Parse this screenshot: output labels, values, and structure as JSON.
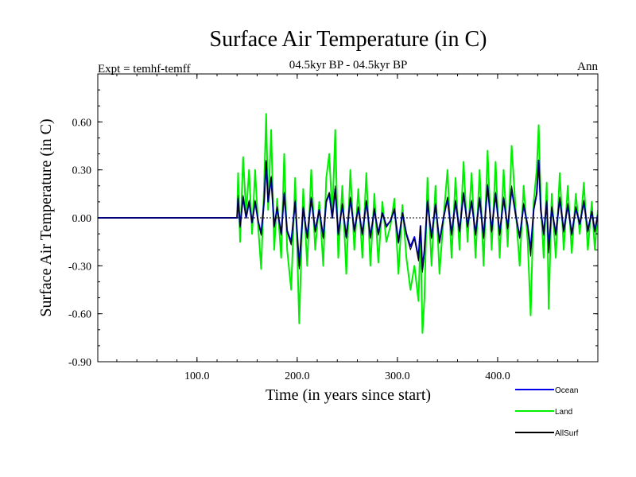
{
  "chart_data": {
    "type": "line",
    "title": "Surface Air Temperature (in C)",
    "subtitle": "04.5kyr BP - 04.5kyr BP",
    "left_label": "Expt = temhf-temff",
    "right_label": "Ann",
    "xlabel": "Time (in years since start)",
    "ylabel": "Surface Air Temperature (in C)",
    "xlim": [
      1,
      500
    ],
    "ylim": [
      -0.9,
      0.9
    ],
    "xticks": [
      100,
      200,
      300,
      400
    ],
    "xtick_labels": [
      "100.0",
      "200.0",
      "300.0",
      "400.0"
    ],
    "yticks": [
      -0.9,
      -0.6,
      -0.3,
      0.0,
      0.3,
      0.6
    ],
    "ytick_labels": [
      "-0.90",
      "-0.60",
      "-0.30",
      "0.00",
      "0.30",
      "0.60"
    ],
    "zero_line": true,
    "legend_position": "bottom-right",
    "series": [
      {
        "name": "Land",
        "color": "#00ee00",
        "x": [
          1,
          140,
          141,
          143,
          146,
          149,
          152,
          155,
          158,
          161,
          164,
          167,
          169,
          171,
          174,
          177,
          180,
          184,
          187,
          190,
          194,
          198,
          202,
          206,
          210,
          214,
          218,
          222,
          226,
          229,
          232,
          235,
          238,
          241,
          245,
          249,
          253,
          257,
          261,
          265,
          269,
          273,
          277,
          281,
          285,
          289,
          293,
          297,
          301,
          305,
          309,
          313,
          317,
          321,
          323,
          325,
          327,
          330,
          334,
          338,
          342,
          346,
          350,
          354,
          358,
          362,
          366,
          370,
          374,
          378,
          382,
          386,
          390,
          394,
          398,
          402,
          406,
          410,
          414,
          418,
          422,
          426,
          430,
          433,
          436,
          439,
          441,
          443,
          446,
          449,
          451,
          454,
          458,
          462,
          466,
          470,
          474,
          478,
          482,
          486,
          490,
          494,
          497,
          500
        ],
        "values": [
          0.0,
          0.0,
          0.28,
          -0.15,
          0.38,
          0.02,
          0.3,
          -0.1,
          0.3,
          -0.05,
          -0.32,
          0.2,
          0.65,
          0.05,
          0.55,
          -0.2,
          0.12,
          -0.25,
          0.4,
          -0.2,
          -0.45,
          0.25,
          -0.66,
          0.18,
          -0.3,
          0.3,
          -0.2,
          0.1,
          -0.3,
          0.25,
          0.4,
          0.0,
          0.55,
          -0.25,
          0.2,
          -0.35,
          0.3,
          -0.2,
          0.18,
          -0.25,
          0.28,
          -0.3,
          0.15,
          -0.28,
          0.1,
          -0.15,
          -0.05,
          0.12,
          -0.35,
          0.08,
          -0.25,
          -0.45,
          -0.3,
          -0.52,
          -0.1,
          -0.72,
          -0.5,
          0.25,
          -0.3,
          0.2,
          -0.35,
          0.0,
          0.3,
          -0.25,
          0.25,
          -0.2,
          0.35,
          -0.15,
          0.28,
          -0.25,
          0.3,
          -0.3,
          0.42,
          -0.2,
          0.35,
          -0.25,
          0.3,
          -0.18,
          0.45,
          0.05,
          -0.3,
          0.2,
          -0.15,
          -0.61,
          0.1,
          0.3,
          0.58,
          0.1,
          -0.25,
          0.22,
          -0.57,
          0.15,
          -0.25,
          0.28,
          -0.2,
          0.2,
          -0.22,
          0.15,
          -0.1,
          0.22,
          -0.2,
          0.1,
          -0.2,
          0.05
        ]
      },
      {
        "name": "Ocean",
        "color": "#0000ee",
        "x": [
          1,
          140,
          141,
          143,
          146,
          149,
          152,
          155,
          158,
          161,
          164,
          167,
          169,
          171,
          174,
          177,
          180,
          184,
          187,
          190,
          194,
          198,
          202,
          206,
          210,
          214,
          218,
          222,
          226,
          229,
          232,
          235,
          238,
          241,
          245,
          249,
          253,
          257,
          261,
          265,
          269,
          273,
          277,
          281,
          285,
          289,
          293,
          297,
          301,
          305,
          309,
          313,
          317,
          321,
          323,
          325,
          327,
          330,
          334,
          338,
          342,
          346,
          350,
          354,
          358,
          362,
          366,
          370,
          374,
          378,
          382,
          386,
          390,
          394,
          398,
          402,
          406,
          410,
          414,
          418,
          422,
          426,
          430,
          433,
          436,
          439,
          441,
          443,
          446,
          449,
          451,
          454,
          458,
          462,
          466,
          470,
          474,
          478,
          482,
          486,
          490,
          494,
          497,
          500
        ],
        "values": [
          0.0,
          0.0,
          0.12,
          -0.05,
          0.13,
          0.0,
          0.1,
          -0.03,
          0.1,
          -0.02,
          -0.1,
          0.1,
          0.35,
          0.1,
          0.25,
          -0.05,
          0.06,
          -0.1,
          0.15,
          -0.08,
          -0.15,
          0.1,
          -0.3,
          0.06,
          -0.12,
          0.12,
          -0.08,
          0.05,
          -0.12,
          0.1,
          0.15,
          0.0,
          0.18,
          -0.1,
          0.08,
          -0.12,
          0.12,
          -0.08,
          0.06,
          -0.1,
          0.1,
          -0.12,
          0.05,
          -0.1,
          0.03,
          -0.05,
          -0.02,
          0.05,
          -0.15,
          0.03,
          -0.1,
          -0.18,
          -0.12,
          -0.25,
          -0.05,
          -0.32,
          -0.2,
          0.1,
          -0.12,
          0.08,
          -0.15,
          0.0,
          0.12,
          -0.1,
          0.1,
          -0.08,
          0.15,
          -0.05,
          0.1,
          -0.1,
          0.12,
          -0.12,
          0.2,
          -0.08,
          0.15,
          -0.1,
          0.12,
          -0.06,
          0.18,
          0.02,
          -0.12,
          0.08,
          -0.05,
          -0.2,
          0.05,
          0.15,
          0.36,
          0.05,
          -0.1,
          0.1,
          -0.2,
          0.06,
          -0.1,
          0.12,
          -0.08,
          0.08,
          -0.1,
          0.06,
          -0.04,
          0.1,
          -0.08,
          0.04,
          -0.08,
          0.02
        ]
      },
      {
        "name": "AllSurf",
        "color": "#000000",
        "x": [
          1,
          140,
          141,
          143,
          146,
          149,
          152,
          155,
          158,
          161,
          164,
          167,
          169,
          171,
          174,
          177,
          180,
          184,
          187,
          190,
          194,
          198,
          202,
          206,
          210,
          214,
          218,
          222,
          226,
          229,
          232,
          235,
          238,
          241,
          245,
          249,
          253,
          257,
          261,
          265,
          269,
          273,
          277,
          281,
          285,
          289,
          293,
          297,
          301,
          305,
          309,
          313,
          317,
          321,
          323,
          325,
          327,
          330,
          334,
          338,
          342,
          346,
          350,
          354,
          358,
          362,
          366,
          370,
          374,
          378,
          382,
          386,
          390,
          394,
          398,
          402,
          406,
          410,
          414,
          418,
          422,
          426,
          430,
          433,
          436,
          439,
          441,
          443,
          446,
          449,
          451,
          454,
          458,
          462,
          466,
          470,
          474,
          478,
          482,
          486,
          490,
          494,
          497,
          500
        ],
        "values": [
          0.0,
          0.0,
          0.14,
          -0.06,
          0.14,
          0.0,
          0.11,
          -0.03,
          0.11,
          -0.02,
          -0.11,
          0.11,
          0.36,
          0.1,
          0.26,
          -0.06,
          0.07,
          -0.11,
          0.16,
          -0.09,
          -0.17,
          0.11,
          -0.32,
          0.07,
          -0.13,
          0.13,
          -0.09,
          0.05,
          -0.13,
          0.11,
          0.16,
          0.0,
          0.2,
          -0.11,
          0.09,
          -0.13,
          0.13,
          -0.09,
          0.07,
          -0.11,
          0.11,
          -0.13,
          0.06,
          -0.11,
          0.03,
          -0.06,
          -0.02,
          0.06,
          -0.16,
          0.03,
          -0.11,
          -0.2,
          -0.13,
          -0.27,
          -0.05,
          -0.34,
          -0.22,
          0.11,
          -0.13,
          0.09,
          -0.16,
          0.0,
          0.13,
          -0.11,
          0.11,
          -0.09,
          0.16,
          -0.06,
          0.11,
          -0.11,
          0.13,
          -0.13,
          0.21,
          -0.09,
          0.16,
          -0.11,
          0.13,
          -0.07,
          0.2,
          0.02,
          -0.13,
          0.09,
          -0.06,
          -0.24,
          0.05,
          0.16,
          0.36,
          0.05,
          -0.11,
          0.11,
          -0.22,
          0.07,
          -0.11,
          0.13,
          -0.09,
          0.09,
          -0.11,
          0.07,
          -0.04,
          0.11,
          -0.09,
          0.04,
          -0.09,
          0.02
        ]
      }
    ],
    "legend_order": [
      "Ocean",
      "Land",
      "AllSurf"
    ]
  }
}
